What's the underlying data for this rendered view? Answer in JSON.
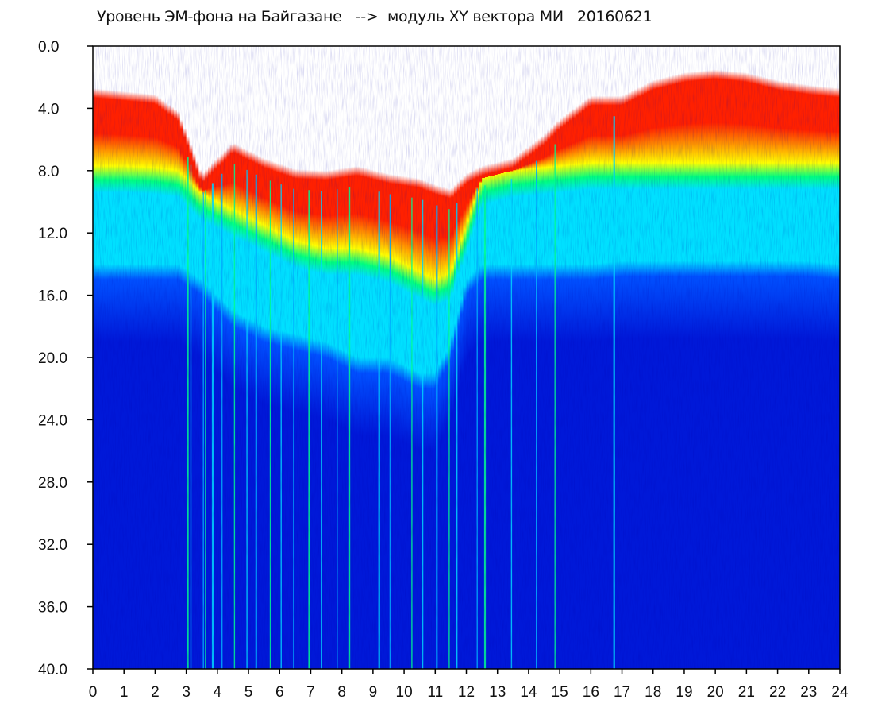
{
  "chart_data": {
    "type": "heatmap",
    "title": "Уровень ЭМ-фона на Байгазане   -->  модуль XY вектора МИ   20160621",
    "xlabel": "",
    "ylabel": "",
    "xlim": [
      0,
      24
    ],
    "ylim": [
      0,
      40
    ],
    "y_inverted": true,
    "x_ticks": [
      "0",
      "1",
      "2",
      "3",
      "4",
      "5",
      "6",
      "7",
      "8",
      "9",
      "10",
      "11",
      "12",
      "13",
      "14",
      "15",
      "16",
      "17",
      "18",
      "19",
      "20",
      "21",
      "22",
      "23",
      "24"
    ],
    "y_ticks": [
      "0.0",
      "4.0",
      "8.0",
      "12.0",
      "16.0",
      "20.0",
      "24.0",
      "28.0",
      "32.0",
      "36.0",
      "40.0"
    ],
    "color_scale": [
      "#ffffff",
      "#ff2000",
      "#ffff00",
      "#00ff80",
      "#00e0ff",
      "#0050ff",
      "#0018d8"
    ],
    "band_edges": {
      "hours": [
        0,
        1,
        2,
        2.75,
        3.5,
        4.5,
        5.5,
        6.5,
        7.5,
        8.5,
        9.5,
        10.5,
        11,
        11.5,
        12,
        12.5,
        13.5,
        14.5,
        15,
        16,
        17,
        18,
        19,
        20,
        21,
        22,
        23,
        24
      ],
      "signal_top": [
        3,
        3.2,
        3.4,
        4.5,
        8.5,
        6.5,
        7.5,
        8.2,
        8.3,
        8.0,
        8.5,
        8.8,
        9.2,
        9.5,
        8.5,
        8.0,
        7.5,
        6.0,
        5.0,
        3.5,
        3.5,
        2.5,
        2.0,
        1.8,
        2.0,
        2.5,
        2.8,
        3.0
      ],
      "red_bottom": [
        8.2,
        8.2,
        8.3,
        8.5,
        10,
        11,
        12,
        13,
        13.5,
        13.5,
        14,
        15,
        15.5,
        15,
        12,
        9.0,
        8.5,
        8.3,
        8.2,
        8.0,
        8.0,
        8.0,
        8.0,
        8.0,
        8.0,
        8.0,
        8.0,
        8.0
      ],
      "cyan_bottom": [
        15,
        15,
        15,
        15,
        16,
        18,
        19,
        19.5,
        20,
        21,
        21,
        22,
        22,
        20,
        16,
        15,
        15,
        15,
        15,
        15,
        14.8,
        14.8,
        14.8,
        14.8,
        14.8,
        14.8,
        14.8,
        15
      ]
    },
    "spikes_hours": [
      3.05,
      3.15,
      3.55,
      3.62,
      3.85,
      4.15,
      4.55,
      4.95,
      5.25,
      5.7,
      6.05,
      6.45,
      6.95,
      7.35,
      7.85,
      8.25,
      9.2,
      9.55,
      10.25,
      10.6,
      11.05,
      11.45,
      11.7,
      12.35,
      12.6,
      13.45,
      14.25,
      14.85,
      16.75
    ]
  }
}
